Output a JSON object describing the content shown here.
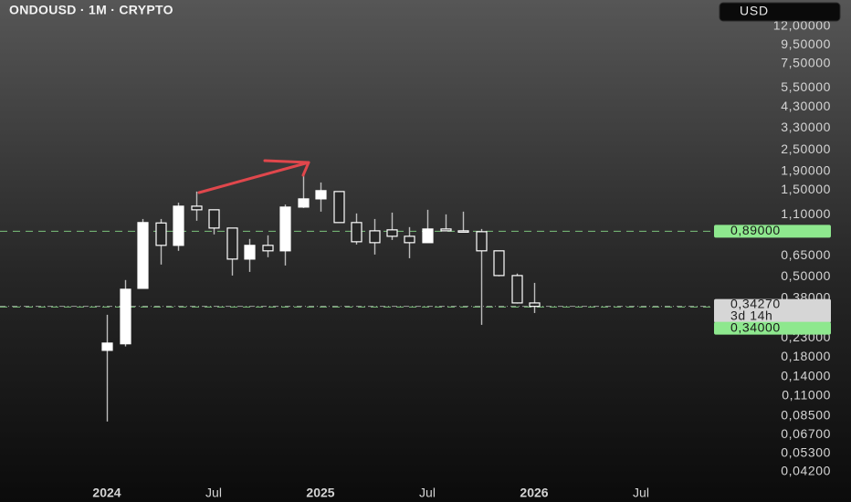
{
  "chart_data": {
    "type": "candlestick",
    "title": "ONDOUSD · 1M · CRYPTO",
    "currency": "USD",
    "x": [
      "2024-01",
      "2024-02",
      "2024-03",
      "2024-04",
      "2024-05",
      "2024-06",
      "2024-07",
      "2024-08",
      "2024-09",
      "2024-10",
      "2024-11",
      "2024-12",
      "2025-01",
      "2025-02",
      "2025-03",
      "2025-04",
      "2025-05",
      "2025-06",
      "2025-07",
      "2025-08",
      "2025-09",
      "2025-10",
      "2025-11",
      "2025-12",
      "2026-01"
    ],
    "open": [
      0.196,
      0.213,
      0.431,
      0.989,
      0.744,
      1.224,
      1.169,
      0.927,
      0.625,
      0.744,
      0.694,
      1.21,
      1.343,
      1.474,
      0.994,
      0.895,
      0.906,
      0.835,
      0.77,
      0.916,
      0.895,
      0.885,
      0.694,
      0.507,
      0.358
    ],
    "high": [
      0.308,
      0.479,
      1.04,
      1.04,
      1.28,
      1.474,
      1.169,
      0.927,
      0.807,
      0.845,
      1.25,
      1.815,
      1.654,
      1.474,
      1.116,
      1.04,
      1.128,
      0.938,
      1.169,
      1.103,
      1.142,
      0.916,
      0.694,
      0.52,
      0.462
    ],
    "low": [
      0.0794,
      0.206,
      0.431,
      0.583,
      0.694,
      1.017,
      0.855,
      0.507,
      0.531,
      0.64,
      0.576,
      1.196,
      1.142,
      0.994,
      0.752,
      0.662,
      0.797,
      0.632,
      0.77,
      0.895,
      0.875,
      0.271,
      0.502,
      0.355,
      0.315
    ],
    "close": [
      0.215,
      0.426,
      0.994,
      0.744,
      1.224,
      1.169,
      0.927,
      0.625,
      0.744,
      0.694,
      1.21,
      1.343,
      1.491,
      0.994,
      0.779,
      0.77,
      0.835,
      0.77,
      0.916,
      0.895,
      0.885,
      0.694,
      0.507,
      0.358,
      0.3427
    ],
    "up_color": "#ffffff",
    "down_color": "#ffffff",
    "log_scale": true,
    "ylim": [
      0.036,
      16.8
    ],
    "yticks": [
      {
        "value": 12,
        "label": "12,00000"
      },
      {
        "value": 9.5,
        "label": "9,50000"
      },
      {
        "value": 7.5,
        "label": "7,50000"
      },
      {
        "value": 5.5,
        "label": "5,50000"
      },
      {
        "value": 4.3,
        "label": "4,30000"
      },
      {
        "value": 3.3,
        "label": "3,30000"
      },
      {
        "value": 2.5,
        "label": "2,50000"
      },
      {
        "value": 1.9,
        "label": "1,90000"
      },
      {
        "value": 1.5,
        "label": "1,50000"
      },
      {
        "value": 1.1,
        "label": "1,10000"
      },
      {
        "value": 0.65,
        "label": "0,65000"
      },
      {
        "value": 0.5,
        "label": "0,50000"
      },
      {
        "value": 0.38,
        "label": "0,38000"
      },
      {
        "value": 0.23,
        "label": "0,23000"
      },
      {
        "value": 0.18,
        "label": "0,18000"
      },
      {
        "value": 0.14,
        "label": "0,14000"
      },
      {
        "value": 0.11,
        "label": "0,11000"
      },
      {
        "value": 0.085,
        "label": "0,08500"
      },
      {
        "value": 0.067,
        "label": "0,06700"
      },
      {
        "value": 0.053,
        "label": "0,05300"
      },
      {
        "value": 0.042,
        "label": "0,04200"
      }
    ],
    "xlim": [
      "2023-07",
      "2026-11"
    ],
    "xticks": [
      {
        "value": "2024-01",
        "label": "2024"
      },
      {
        "value": "2024-07",
        "label": "Jul"
      },
      {
        "value": "2025-01",
        "label": "2025"
      },
      {
        "value": "2025-07",
        "label": "Jul"
      },
      {
        "value": "2026-01",
        "label": "2026"
      },
      {
        "value": "2026-07",
        "label": "Jul"
      }
    ],
    "horizontal_lines": [
      {
        "value": 0.89,
        "label": "0,89000",
        "color": "#8ee88e"
      },
      {
        "value": 0.34,
        "label": "0,34000",
        "color": "#8ee88e"
      }
    ],
    "last_price": {
      "value": 0.3427,
      "label": "0,34270",
      "countdown": "3d 14h"
    }
  }
}
